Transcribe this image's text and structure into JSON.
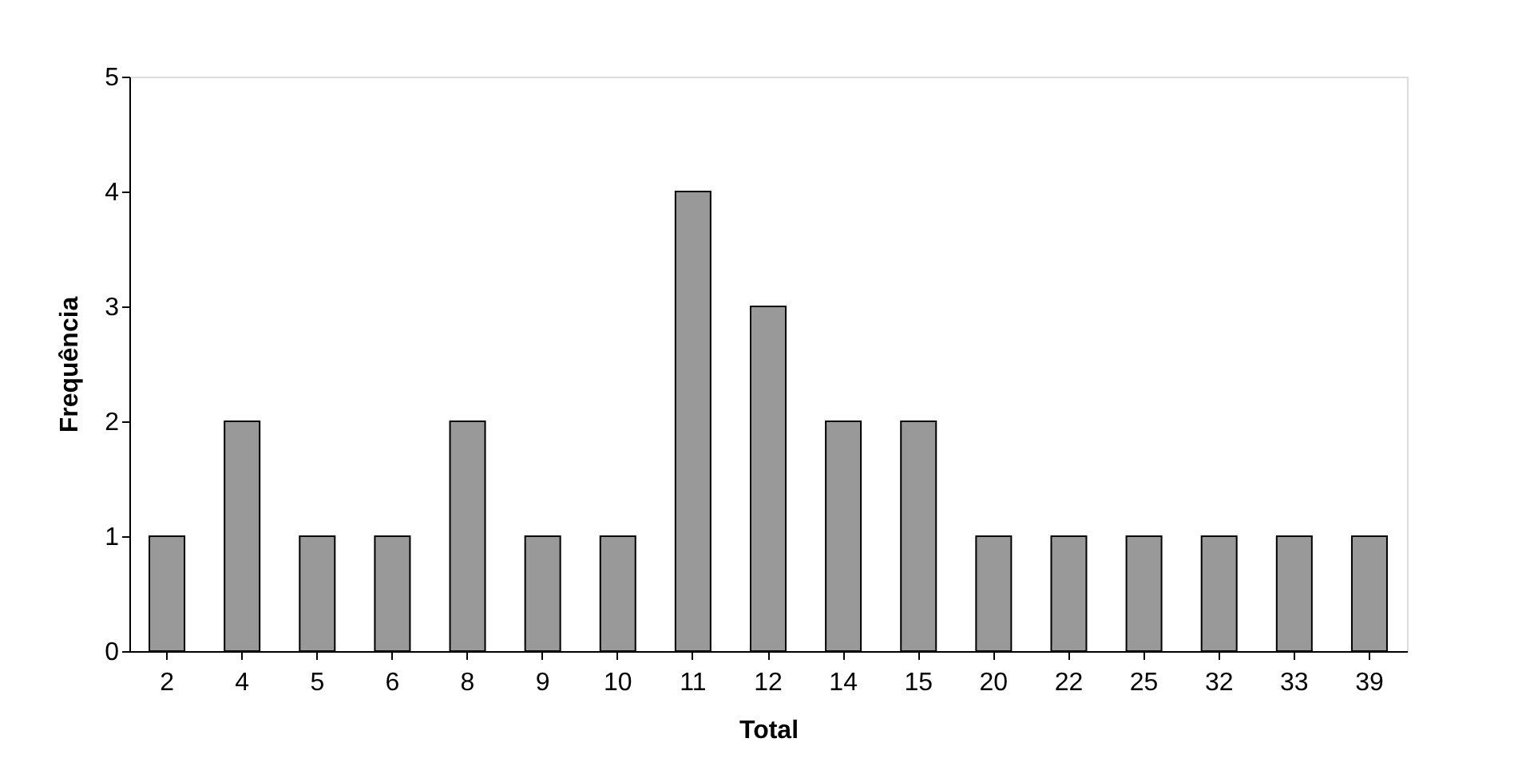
{
  "chart_data": {
    "type": "bar",
    "categories": [
      "2",
      "4",
      "5",
      "6",
      "8",
      "9",
      "10",
      "11",
      "12",
      "14",
      "15",
      "20",
      "22",
      "25",
      "32",
      "33",
      "39"
    ],
    "values": [
      1,
      2,
      1,
      1,
      2,
      1,
      1,
      4,
      3,
      2,
      2,
      1,
      1,
      1,
      1,
      1,
      1
    ],
    "color": "#999999",
    "xlabel": "Total",
    "ylabel": "Frequência",
    "ylim": [
      0,
      5
    ],
    "yticks": [
      0,
      1,
      2,
      3,
      4,
      5
    ],
    "grid": false
  }
}
